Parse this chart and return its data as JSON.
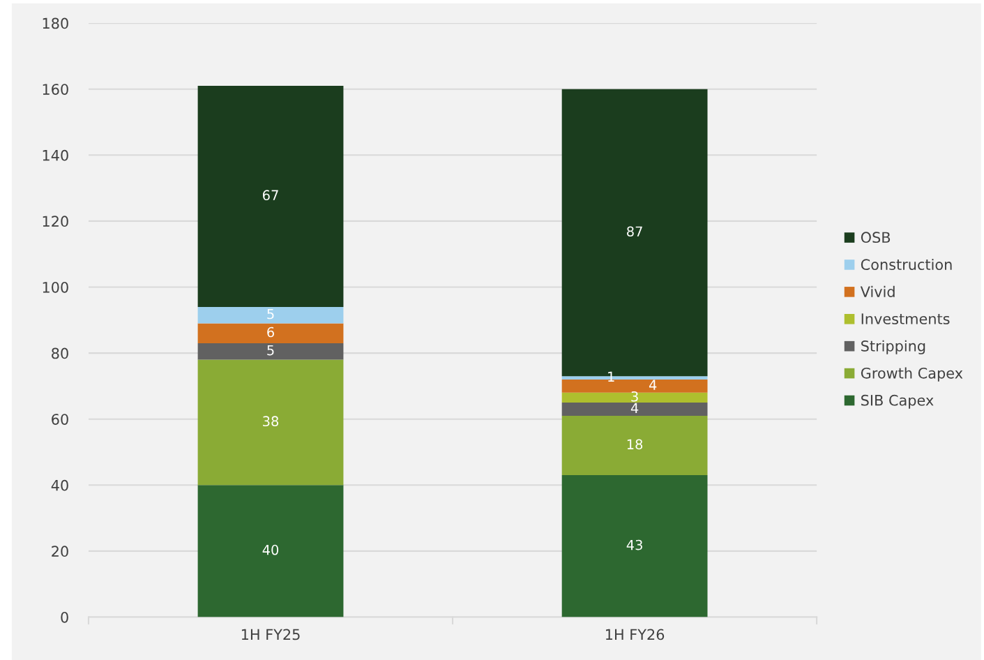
{
  "chart_data": {
    "type": "bar",
    "stacked": true,
    "categories": [
      "1H FY25",
      "1H FY26"
    ],
    "series": [
      {
        "name": "SIB Capex",
        "color": "#2d6830",
        "values": [
          40,
          43
        ]
      },
      {
        "name": "Growth Capex",
        "color": "#8aab35",
        "values": [
          38,
          18
        ]
      },
      {
        "name": "Stripping",
        "color": "#616161",
        "values": [
          5,
          4
        ]
      },
      {
        "name": "Investments",
        "color": "#aebf2e",
        "values": [
          null,
          3
        ]
      },
      {
        "name": "Vivid",
        "color": "#d2711f",
        "values": [
          6,
          4
        ]
      },
      {
        "name": "Construction",
        "color": "#9dcfed",
        "values": [
          5,
          1
        ]
      },
      {
        "name": "OSB",
        "color": "#1b3d1e",
        "values": [
          67,
          87
        ]
      }
    ],
    "ylim": [
      0,
      180
    ],
    "yticks": [
      0,
      20,
      40,
      60,
      80,
      100,
      120,
      140,
      160,
      180
    ],
    "grid": "y",
    "legend": "right",
    "data_labels": true
  }
}
